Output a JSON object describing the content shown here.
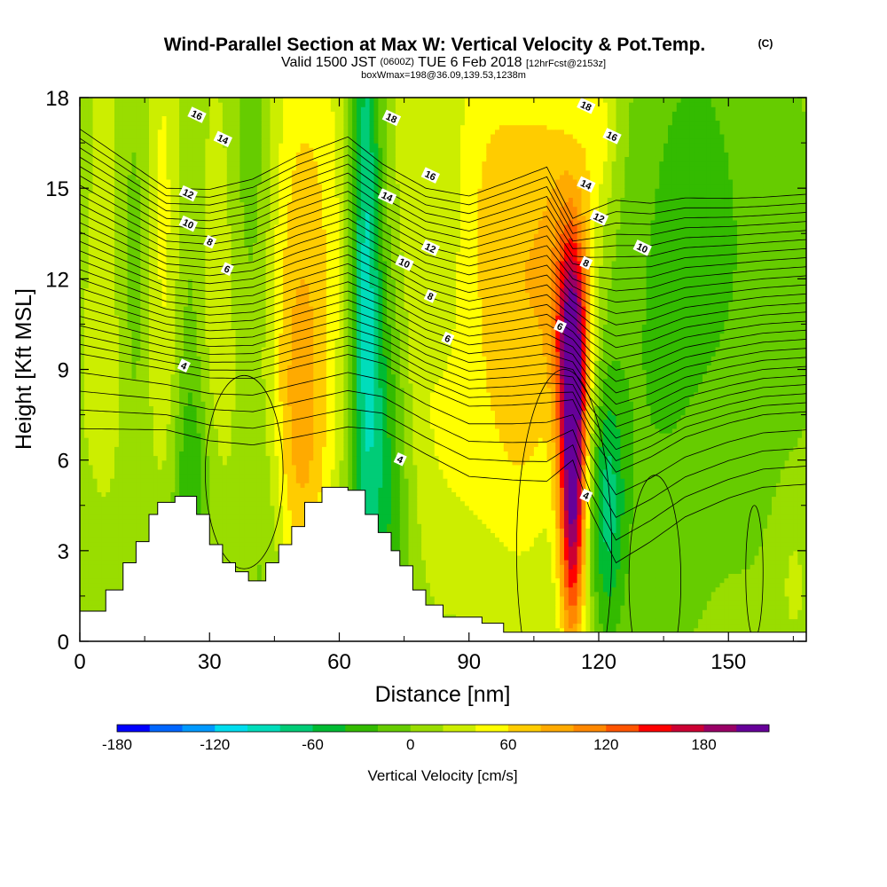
{
  "header": {
    "title": "Wind-Parallel Section at Max W: Vertical Velocity & Pot.Temp.",
    "copyright": "(C)",
    "valid_prefix": "Valid 1500 JST",
    "valid_utc": "(0600Z)",
    "valid_date": "TUE 6 Feb 2018",
    "forecast": "[12hrFcst@2153z]",
    "boxwmax": "boxWmax=198@36.09,139.53,1238m"
  },
  "chart_data": {
    "type": "heatmap",
    "title": "Wind-Parallel Section at Max W: Vertical Velocity & Pot.Temp.",
    "xlabel": "Distance [nm]",
    "ylabel": "Height [Kft MSL]",
    "xlim": [
      0,
      168
    ],
    "ylim": [
      0,
      18
    ],
    "x_ticks": [
      0,
      30,
      60,
      90,
      120,
      150
    ],
    "x_tick_labels": [
      "0",
      "30",
      "60",
      "90",
      "120",
      "150"
    ],
    "y_ticks": [
      0,
      3,
      6,
      9,
      12,
      15,
      18
    ],
    "y_tick_labels": [
      "0",
      "3",
      "6",
      "9",
      "12",
      "15",
      "18"
    ],
    "colorbar": {
      "label": "Vertical Velocity [cm/s]",
      "levels": [
        -180,
        -160,
        -140,
        -120,
        -100,
        -80,
        -60,
        -40,
        -20,
        0,
        20,
        40,
        60,
        80,
        100,
        120,
        140,
        160,
        180,
        200,
        220
      ],
      "tick_values": [
        -180,
        -120,
        -60,
        0,
        60,
        120,
        180
      ],
      "tick_labels": [
        "-180",
        "-120",
        "-60",
        "0",
        "60",
        "120",
        "180"
      ],
      "colors": [
        "#0000ff",
        "#0066ff",
        "#0099ff",
        "#00ddee",
        "#00ddbb",
        "#00cc77",
        "#00bb33",
        "#33bb00",
        "#66cc00",
        "#99dd00",
        "#ccee00",
        "#ffff00",
        "#ffcc00",
        "#ffaa00",
        "#ff8800",
        "#ff5500",
        "#ff0000",
        "#cc0033",
        "#990066",
        "#660099"
      ]
    },
    "updrafts": [
      {
        "x": 7,
        "z": 15,
        "w": 20,
        "sx": 5,
        "sz": 8
      },
      {
        "x": 20,
        "z": 15,
        "w": 40,
        "sx": 5,
        "sz": 6
      },
      {
        "x": 30,
        "z": 12,
        "w": 30,
        "sx": 7,
        "sz": 6
      },
      {
        "x": 52,
        "z": 13,
        "w": 60,
        "sx": 8,
        "sz": 7
      },
      {
        "x": 50,
        "z": 6,
        "w": 50,
        "sx": 5,
        "sz": 4
      },
      {
        "x": 77,
        "z": 12,
        "w": 25,
        "sx": 5,
        "sz": 6
      },
      {
        "x": 94,
        "z": 15,
        "w": 50,
        "sx": 10,
        "sz": 5
      },
      {
        "x": 90,
        "z": 6,
        "w": 30,
        "sx": 14,
        "sz": 4
      },
      {
        "x": 104,
        "z": 10,
        "w": 35,
        "sx": 6,
        "sz": 6
      },
      {
        "x": 114,
        "z": 5.5,
        "w": 198,
        "sx": 2.2,
        "sz": 4
      },
      {
        "x": 114,
        "z": 10.5,
        "w": 100,
        "sx": 3,
        "sz": 2.5
      },
      {
        "x": 112,
        "z": 14,
        "w": 40,
        "sx": 5,
        "sz": 4
      },
      {
        "x": 120,
        "z": 17,
        "w": 40,
        "sx": 3,
        "sz": 2
      },
      {
        "x": 165,
        "z": 2,
        "w": 20,
        "sx": 3,
        "sz": 2
      },
      {
        "x": 10,
        "z": 8,
        "w": 12,
        "sx": 10,
        "sz": 3
      }
    ],
    "downdrafts": [
      {
        "x": 13,
        "z": 12,
        "w": -40,
        "sx": 3,
        "sz": 6
      },
      {
        "x": 25,
        "z": 13,
        "w": -50,
        "sx": 3,
        "sz": 7
      },
      {
        "x": 26,
        "z": 5,
        "w": -40,
        "sx": 3,
        "sz": 3
      },
      {
        "x": 40,
        "z": 15,
        "w": -40,
        "sx": 4,
        "sz": 5
      },
      {
        "x": 44,
        "z": 4,
        "w": -30,
        "sx": 4,
        "sz": 4
      },
      {
        "x": 66,
        "z": 14,
        "w": -90,
        "sx": 2.5,
        "sz": 7
      },
      {
        "x": 70,
        "z": 6,
        "w": -70,
        "sx": 5,
        "sz": 5
      },
      {
        "x": 84,
        "z": 14,
        "w": -20,
        "sx": 4,
        "sz": 4
      },
      {
        "x": 122,
        "z": 4.5,
        "w": -70,
        "sx": 3,
        "sz": 3
      },
      {
        "x": 142,
        "z": 15,
        "w": -25,
        "sx": 6,
        "sz": 4
      },
      {
        "x": 133,
        "z": 9,
        "w": -25,
        "sx": 8,
        "sz": 6
      },
      {
        "x": 155,
        "z": 12,
        "w": -20,
        "sx": 10,
        "sz": 6
      }
    ],
    "terrain": [
      {
        "x": 0,
        "z": 1.0
      },
      {
        "x": 6,
        "z": 1.7
      },
      {
        "x": 10,
        "z": 2.6
      },
      {
        "x": 13,
        "z": 3.3
      },
      {
        "x": 16,
        "z": 4.2
      },
      {
        "x": 18,
        "z": 4.6
      },
      {
        "x": 22,
        "z": 4.8
      },
      {
        "x": 27,
        "z": 4.2
      },
      {
        "x": 30,
        "z": 3.2
      },
      {
        "x": 33,
        "z": 2.6
      },
      {
        "x": 36,
        "z": 2.3
      },
      {
        "x": 39,
        "z": 2.0
      },
      {
        "x": 43,
        "z": 2.6
      },
      {
        "x": 46,
        "z": 3.2
      },
      {
        "x": 49,
        "z": 3.8
      },
      {
        "x": 52,
        "z": 4.6
      },
      {
        "x": 56,
        "z": 5.1
      },
      {
        "x": 62,
        "z": 5.0
      },
      {
        "x": 66,
        "z": 4.2
      },
      {
        "x": 69,
        "z": 3.6
      },
      {
        "x": 72,
        "z": 3.0
      },
      {
        "x": 74,
        "z": 2.5
      },
      {
        "x": 77,
        "z": 1.7
      },
      {
        "x": 80,
        "z": 1.2
      },
      {
        "x": 84,
        "z": 0.8
      },
      {
        "x": 93,
        "z": 0.6
      },
      {
        "x": 98,
        "z": 0.3
      },
      {
        "x": 168,
        "z": 0.3
      }
    ],
    "theta_contours": {
      "levels": [
        2,
        3,
        4,
        5,
        6,
        6.5,
        7,
        7.5,
        8,
        8.5,
        9,
        9.5,
        10,
        10.5,
        11,
        11.5,
        12,
        12.5,
        13,
        13.5,
        14,
        14.5,
        15,
        15.5,
        16,
        16.5,
        17,
        17.5,
        18
      ],
      "nodes_x": [
        0,
        20,
        30,
        40,
        50,
        62,
        70,
        80,
        90,
        100,
        108,
        114,
        118,
        124,
        132,
        140,
        150,
        158,
        168
      ],
      "base_z": [
        12.0,
        11.0,
        10.8,
        10.9,
        11.4,
        11.9,
        11.4,
        10.6,
        10.1,
        10.3,
        10.5,
        10.0,
        9.3,
        8.6,
        8.9,
        9.4,
        9.7,
        9.9,
        10.0
      ],
      "slope": [
        0.62,
        0.5,
        0.52,
        0.55,
        0.58,
        0.6,
        0.55,
        0.55,
        0.58,
        0.62,
        0.65,
        0.5,
        0.62,
        0.75,
        0.7,
        0.66,
        0.62,
        0.6,
        0.6
      ]
    },
    "contour_labels": [
      {
        "text": "16",
        "x": 27,
        "z": 17.4
      },
      {
        "text": "14",
        "x": 33,
        "z": 16.6
      },
      {
        "text": "12",
        "x": 25,
        "z": 14.8
      },
      {
        "text": "10",
        "x": 25,
        "z": 13.8
      },
      {
        "text": "8",
        "x": 30,
        "z": 13.2
      },
      {
        "text": "6",
        "x": 34,
        "z": 12.3
      },
      {
        "text": "4",
        "x": 24,
        "z": 9.1
      },
      {
        "text": "18",
        "x": 72,
        "z": 17.3
      },
      {
        "text": "14",
        "x": 71,
        "z": 14.7
      },
      {
        "text": "10",
        "x": 75,
        "z": 12.5
      },
      {
        "text": "8",
        "x": 81,
        "z": 11.4
      },
      {
        "text": "6",
        "x": 85,
        "z": 10.0
      },
      {
        "text": "4",
        "x": 74,
        "z": 6.0
      },
      {
        "text": "16",
        "x": 81,
        "z": 15.4
      },
      {
        "text": "12",
        "x": 81,
        "z": 13.0
      },
      {
        "text": "18",
        "x": 117,
        "z": 17.7
      },
      {
        "text": "16",
        "x": 123,
        "z": 16.7
      },
      {
        "text": "14",
        "x": 117,
        "z": 15.1
      },
      {
        "text": "12",
        "x": 120,
        "z": 14.0
      },
      {
        "text": "10",
        "x": 130,
        "z": 13.0
      },
      {
        "text": "8",
        "x": 117,
        "z": 12.5
      },
      {
        "text": "6",
        "x": 111,
        "z": 10.4
      },
      {
        "text": "4",
        "x": 117,
        "z": 4.8
      }
    ]
  }
}
